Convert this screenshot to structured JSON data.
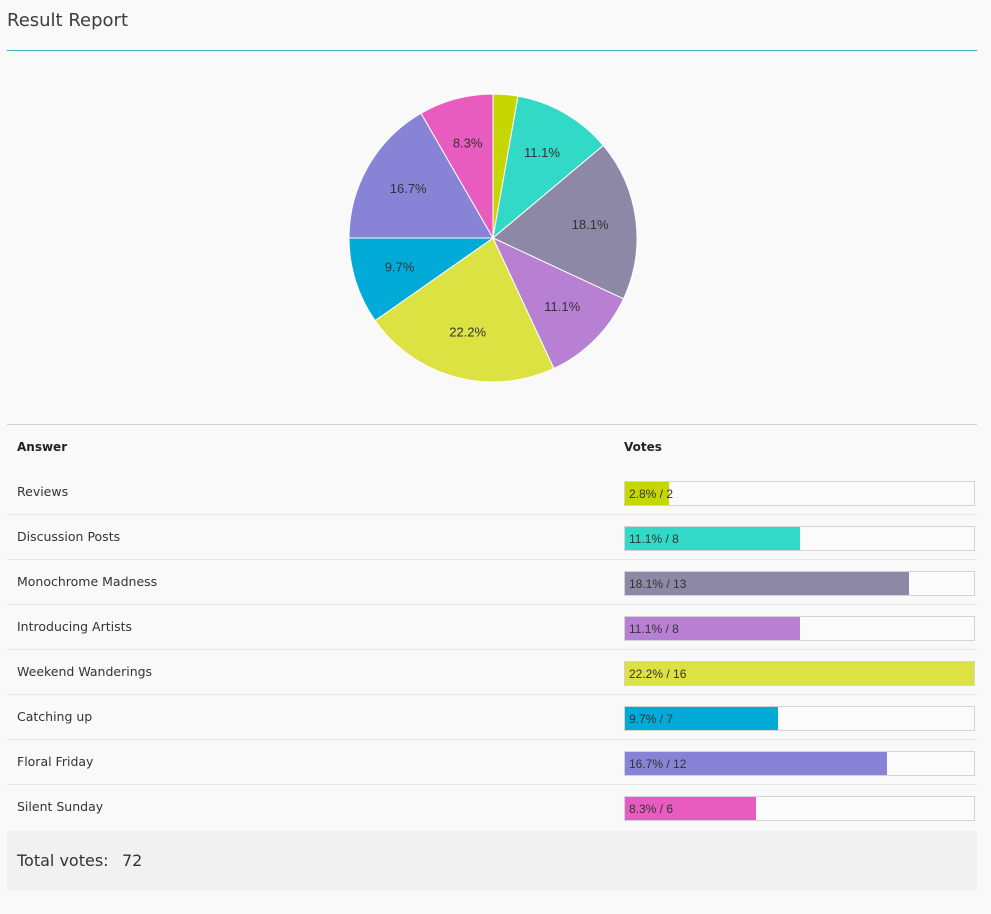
{
  "page": {
    "title": "Result Report"
  },
  "table": {
    "header_answer": "Answer",
    "header_votes": "Votes",
    "rows": [
      {
        "answer": "Reviews",
        "label": "2.8% / 2",
        "votes": 2,
        "color": "#c5d600"
      },
      {
        "answer": "Discussion Posts",
        "label": "11.1% / 8",
        "votes": 8,
        "color": "#31d9c6"
      },
      {
        "answer": "Monochrome Madness",
        "label": "18.1% / 13",
        "votes": 13,
        "color": "#8d88a6"
      },
      {
        "answer": "Introducing Artists",
        "label": "11.1% / 8",
        "votes": 8,
        "color": "#b880d3"
      },
      {
        "answer": "Weekend Wanderings",
        "label": "22.2% / 16",
        "votes": 16,
        "color": "#dde243"
      },
      {
        "answer": "Catching up",
        "label": "9.7% / 7",
        "votes": 7,
        "color": "#00abd8"
      },
      {
        "answer": "Floral Friday",
        "label": "16.7% / 12",
        "votes": 12,
        "color": "#8883d7"
      },
      {
        "answer": "Silent Sunday",
        "label": "8.3% / 6",
        "votes": 6,
        "color": "#e95cbf"
      }
    ]
  },
  "total": {
    "label": "Total votes:",
    "value": "72"
  },
  "chart_data": {
    "type": "pie",
    "title": "",
    "categories": [
      "Reviews",
      "Discussion Posts",
      "Monochrome Madness",
      "Introducing Artists",
      "Weekend Wanderings",
      "Catching up",
      "Floral Friday",
      "Silent Sunday"
    ],
    "values": [
      2,
      8,
      13,
      8,
      16,
      7,
      12,
      6
    ],
    "slice_labels": [
      "",
      "11.1%",
      "18.1%",
      "11.1%",
      "22.2%",
      "9.7%",
      "16.7%",
      "8.3%"
    ],
    "colors": [
      "#c5d600",
      "#31d9c6",
      "#8d88a6",
      "#b880d3",
      "#dde243",
      "#00abd8",
      "#8883d7",
      "#e95cbf"
    ],
    "start": "top",
    "direction": "clockwise"
  }
}
